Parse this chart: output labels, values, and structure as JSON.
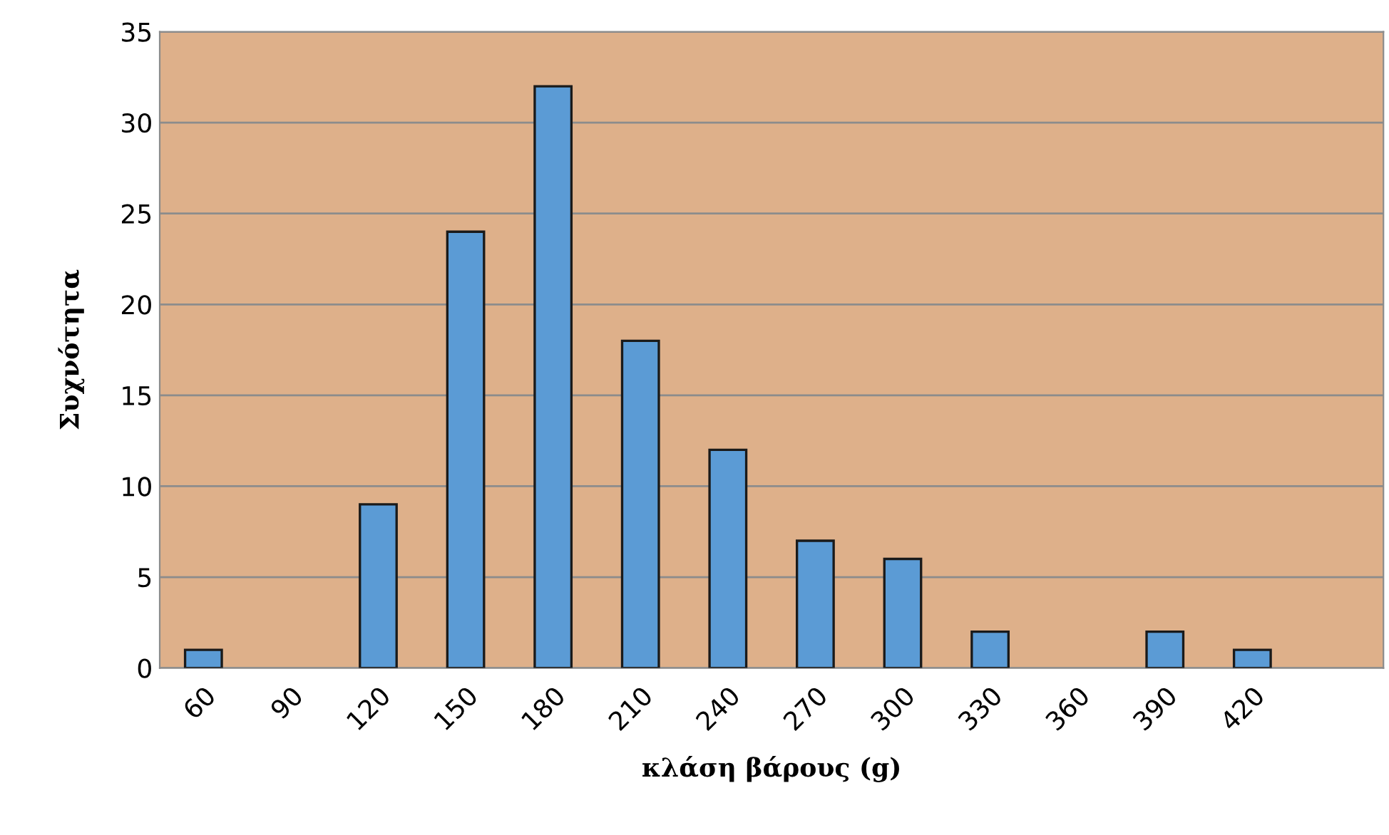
{
  "chart_data": {
    "type": "bar",
    "xlabel": "κλάση βάρους (g)",
    "ylabel": "Συχνότητα",
    "categories": [
      "60",
      "90",
      "120",
      "150",
      "180",
      "210",
      "240",
      "270",
      "300",
      "330",
      "360",
      "390",
      "420",
      null
    ],
    "values": [
      1,
      0,
      9,
      24,
      32,
      18,
      12,
      7,
      6,
      2,
      0,
      2,
      1,
      null
    ],
    "color": "#5b9bd5",
    "ylim": [
      0,
      35
    ],
    "yticks": [
      0,
      5,
      10,
      15,
      20,
      25,
      30,
      35
    ],
    "grid": "y",
    "legend": false
  }
}
